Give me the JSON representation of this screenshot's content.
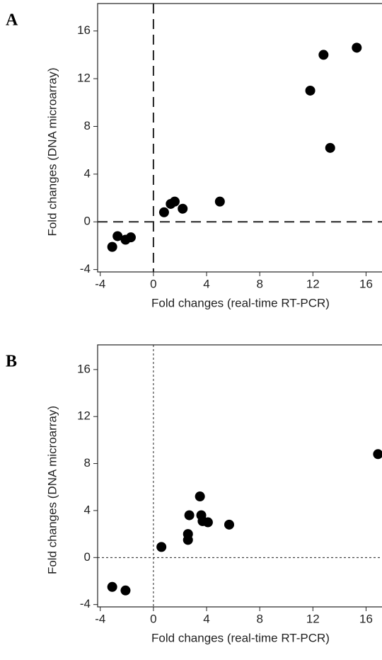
{
  "chart_data": [
    {
      "type": "scatter",
      "panel": "A",
      "x_label": "Fold changes (real-time RT-PCR)",
      "y_label": "Fold changes (DNA microarray)",
      "color": "#000000",
      "zero_line_style": "dashed",
      "hline": 0,
      "vline": 0,
      "xlim": [
        -4.2,
        17.2
      ],
      "ylim": [
        -4.2,
        18.3
      ],
      "xticks": [
        -4,
        0,
        4,
        8,
        12,
        16
      ],
      "yticks": [
        -4,
        0,
        4,
        8,
        12,
        16
      ],
      "x": [
        -3.1,
        -2.7,
        -2.1,
        -1.7,
        0.8,
        1.3,
        1.6,
        2.2,
        5.0,
        11.8,
        12.8,
        13.3,
        15.3
      ],
      "values": [
        -2.1,
        -1.2,
        -1.5,
        -1.3,
        0.8,
        1.5,
        1.7,
        1.1,
        1.7,
        11.0,
        14.0,
        6.2,
        14.6
      ]
    },
    {
      "type": "scatter",
      "panel": "B",
      "x_label": "Fold changes (real-time RT-PCR)",
      "y_label": "Fold changes (DNA microarray)",
      "color": "#000000",
      "zero_line_style": "dotted",
      "hline": 0,
      "vline": 0,
      "xlim": [
        -4.2,
        17.2
      ],
      "ylim": [
        -4.2,
        18.1
      ],
      "xticks": [
        -4,
        0,
        4,
        8,
        12,
        16
      ],
      "yticks": [
        -4,
        0,
        4,
        8,
        12,
        16
      ],
      "x": [
        -3.1,
        -2.1,
        0.6,
        2.6,
        2.6,
        2.7,
        3.5,
        3.6,
        3.7,
        4.1,
        5.7,
        16.9
      ],
      "values": [
        -2.5,
        -2.8,
        0.9,
        2.0,
        1.5,
        3.6,
        5.2,
        3.6,
        3.1,
        3.0,
        2.8,
        8.8
      ]
    }
  ]
}
